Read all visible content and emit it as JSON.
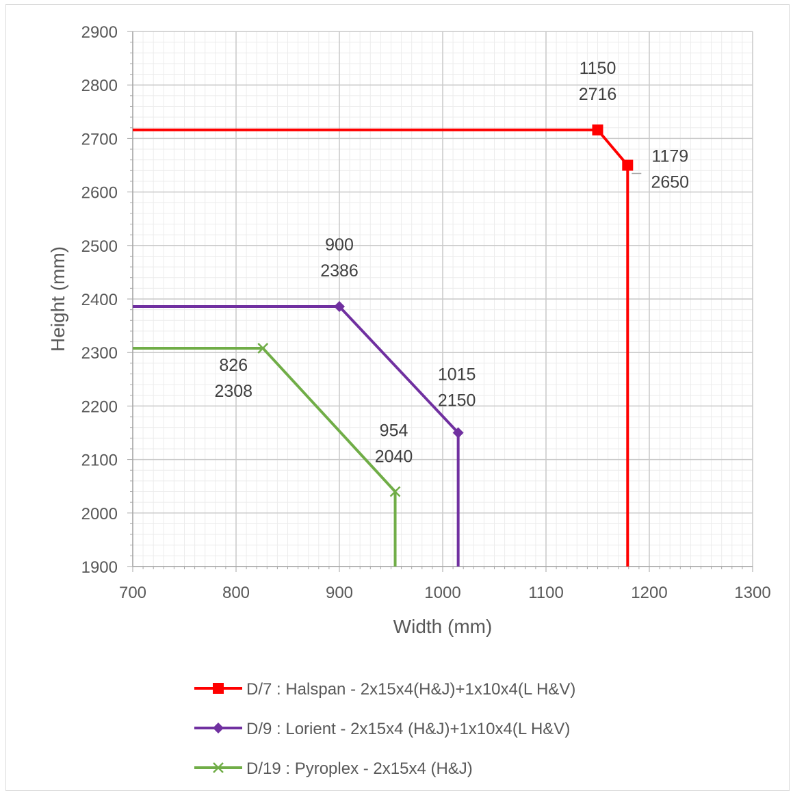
{
  "chart_data": {
    "type": "line",
    "title": "",
    "xlabel": "Width (mm)",
    "ylabel": "Height (mm)",
    "xlim": [
      700,
      1300
    ],
    "ylim": [
      1900,
      2900
    ],
    "x_ticks": [
      700,
      800,
      900,
      1000,
      1100,
      1200,
      1300
    ],
    "y_ticks": [
      1900,
      2000,
      2100,
      2200,
      2300,
      2400,
      2500,
      2600,
      2700,
      2800,
      2900
    ],
    "grid": true,
    "minor_grid": true,
    "legend_position": "bottom",
    "series": [
      {
        "name": "D/7 : Halspan - 2x15x4(H&J)+1x10x4(L H&V)",
        "color": "#ff0000",
        "marker": "square",
        "x": [
          700,
          1150,
          1179,
          1179
        ],
        "y": [
          2716,
          2716,
          2650,
          1900
        ],
        "labels": [
          {
            "x": 1150,
            "y": 2716,
            "line1": "1150",
            "line2": "2716"
          },
          {
            "x": 1179,
            "y": 2650,
            "line1": "1179",
            "line2": "2650"
          }
        ]
      },
      {
        "name": "D/9 : Lorient - 2x15x4 (H&J)+1x10x4(L H&V)",
        "color": "#7030a0",
        "marker": "diamond",
        "x": [
          700,
          900,
          1015,
          1015
        ],
        "y": [
          2386,
          2386,
          2150,
          1900
        ],
        "labels": [
          {
            "x": 900,
            "y": 2386,
            "line1": "900",
            "line2": "2386"
          },
          {
            "x": 1015,
            "y": 2150,
            "line1": "1015",
            "line2": "2150"
          }
        ]
      },
      {
        "name": "D/19 : Pyroplex - 2x15x4 (H&J)",
        "color": "#70ad47",
        "marker": "x",
        "x": [
          700,
          826,
          954,
          954
        ],
        "y": [
          2308,
          2308,
          2040,
          1900
        ],
        "labels": [
          {
            "x": 826,
            "y": 2308,
            "line1": "826",
            "line2": "2308"
          },
          {
            "x": 954,
            "y": 2040,
            "line1": "954",
            "line2": "2040"
          }
        ]
      }
    ]
  }
}
